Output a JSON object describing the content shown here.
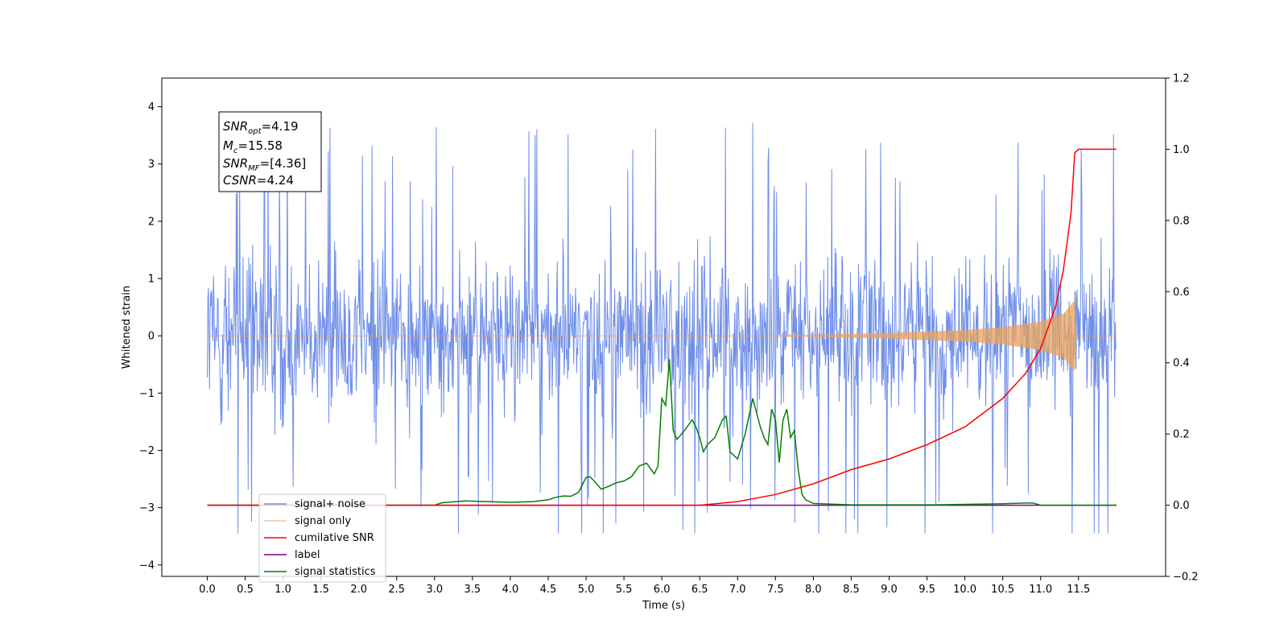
{
  "chart_data": {
    "type": "line",
    "xlabel": "Time (s)",
    "ylabel": "Whitened strain",
    "xlim": [
      -0.6,
      12.65
    ],
    "ylim": [
      -4.2,
      4.5
    ],
    "y2lim": [
      -0.2,
      1.2
    ],
    "x_ticks": [
      "0.0",
      "0.5",
      "1.0",
      "1.5",
      "2.0",
      "2.5",
      "3.0",
      "3.5",
      "4.0",
      "4.5",
      "5.0",
      "5.5",
      "6.0",
      "6.5",
      "7.0",
      "7.5",
      "8.0",
      "8.5",
      "9.0",
      "9.5",
      "10.0",
      "10.5",
      "11.0",
      "11.5"
    ],
    "y_ticks": [
      "4",
      "3",
      "2",
      "1",
      "0",
      "−1",
      "−2",
      "−3",
      "−4"
    ],
    "y2_ticks": [
      "1.2",
      "1.0",
      "0.8",
      "0.6",
      "0.4",
      "0.2",
      "0.0",
      "−0.2"
    ],
    "grid": false,
    "legend_position": "lower-left",
    "colors": {
      "signal_noise": "#6f8ee8",
      "signal_only": "#e8a25a",
      "cumulative_snr": "#ff0000",
      "label": "#800080",
      "signal_statistics": "#008000"
    },
    "annotation": {
      "line1": {
        "sym": "SNR",
        "sub": "opt",
        "val": "=4.19"
      },
      "line2": {
        "sym": "M",
        "sub": "c",
        "val": "=15.58"
      },
      "line3": {
        "sym": "SNR",
        "sub": "MF",
        "val": "=[4.36]"
      },
      "line4": {
        "sym": "CSNR",
        "sub": "",
        "val": "=4.24"
      }
    },
    "series": [
      {
        "name": "signal+ noise",
        "axis": "left",
        "x_range": [
          0.0,
          12.0
        ],
        "amplitude_band": [
          -2.4,
          2.4
        ],
        "peak_extremes": [
          4.12,
          -3.8
        ]
      },
      {
        "name": "signal only",
        "axis": "left",
        "x_range": [
          0.0,
          12.0
        ],
        "envelope": [
          [
            0.0,
            0.0
          ],
          [
            7.5,
            0.0
          ],
          [
            9.0,
            0.05
          ],
          [
            10.0,
            0.1
          ],
          [
            10.5,
            0.15
          ],
          [
            11.0,
            0.25
          ],
          [
            11.3,
            0.38
          ],
          [
            11.45,
            0.62
          ],
          [
            11.47,
            0.0
          ],
          [
            12.0,
            0.0
          ]
        ]
      },
      {
        "name": "cumilative SNR",
        "axis": "right",
        "x": [
          0.0,
          6.5,
          7.0,
          7.5,
          8.0,
          8.5,
          9.0,
          9.5,
          10.0,
          10.5,
          10.8,
          11.0,
          11.2,
          11.3,
          11.4,
          11.45,
          11.5,
          12.0
        ],
        "y": [
          0.0,
          0.0,
          0.01,
          0.03,
          0.06,
          0.1,
          0.13,
          0.17,
          0.22,
          0.3,
          0.37,
          0.44,
          0.56,
          0.66,
          0.82,
          0.99,
          1.0,
          1.0
        ]
      },
      {
        "name": "label",
        "axis": "right",
        "x": [
          0.0,
          12.0
        ],
        "y": [
          0.0,
          0.0
        ]
      },
      {
        "name": "signal statistics",
        "axis": "right",
        "x": [
          0.0,
          3.0,
          3.1,
          3.4,
          4.0,
          4.3,
          4.5,
          4.6,
          4.7,
          4.8,
          4.9,
          5.0,
          5.05,
          5.1,
          5.2,
          5.3,
          5.4,
          5.5,
          5.6,
          5.7,
          5.8,
          5.9,
          5.95,
          6.0,
          6.05,
          6.1,
          6.15,
          6.2,
          6.3,
          6.4,
          6.45,
          6.5,
          6.55,
          6.6,
          6.7,
          6.8,
          6.85,
          6.9,
          7.0,
          7.1,
          7.2,
          7.3,
          7.35,
          7.4,
          7.45,
          7.5,
          7.55,
          7.6,
          7.65,
          7.7,
          7.75,
          7.8,
          7.85,
          7.9,
          8.0,
          8.5,
          9.6,
          10.5,
          10.8,
          10.9,
          11.0,
          12.0
        ],
        "y": [
          0.0,
          0.0,
          0.007,
          0.012,
          0.008,
          0.01,
          0.015,
          0.022,
          0.026,
          0.025,
          0.036,
          0.078,
          0.08,
          0.07,
          0.045,
          0.053,
          0.063,
          0.068,
          0.08,
          0.11,
          0.118,
          0.088,
          0.11,
          0.3,
          0.28,
          0.41,
          0.21,
          0.185,
          0.21,
          0.24,
          0.22,
          0.19,
          0.15,
          0.17,
          0.19,
          0.24,
          0.25,
          0.15,
          0.13,
          0.2,
          0.3,
          0.22,
          0.19,
          0.17,
          0.27,
          0.24,
          0.12,
          0.24,
          0.27,
          0.19,
          0.21,
          0.1,
          0.03,
          0.015,
          0.005,
          0.001,
          0.001,
          0.004,
          0.006,
          0.006,
          0.0,
          0.0
        ]
      }
    ]
  }
}
